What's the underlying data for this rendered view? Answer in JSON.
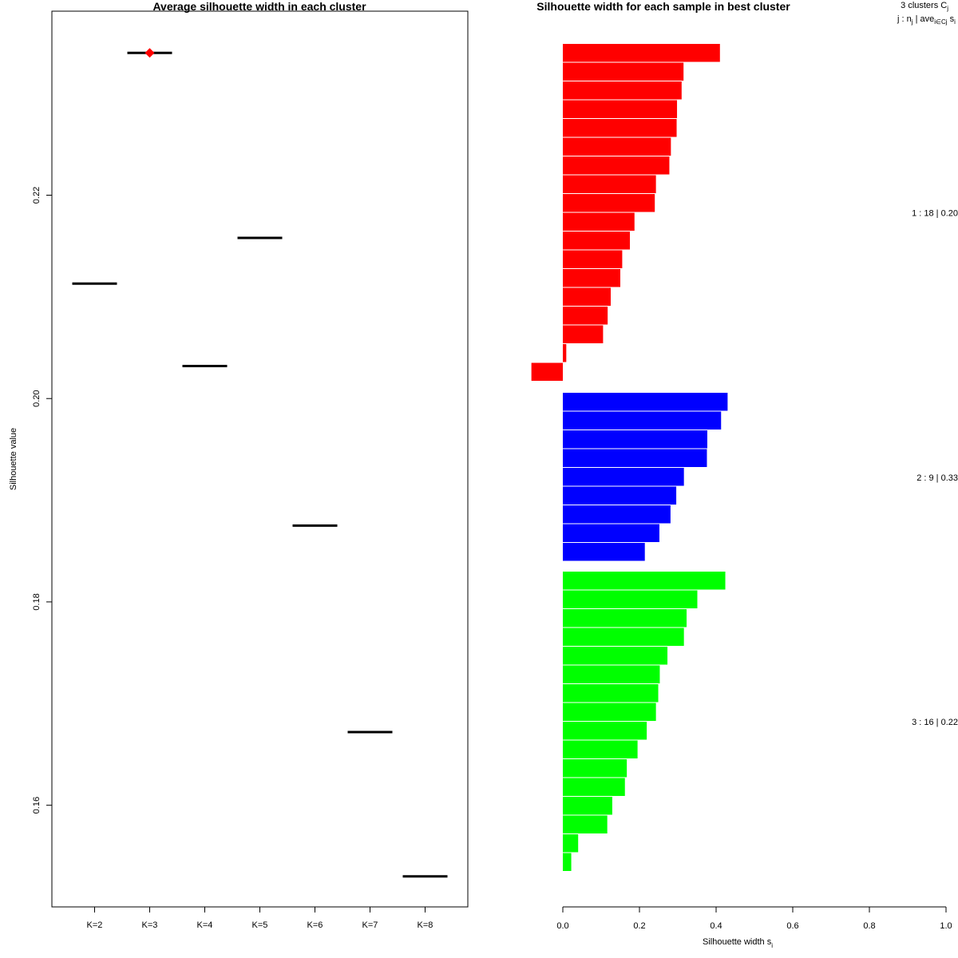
{
  "chart_data": [
    {
      "type": "scatter",
      "title": "Average silhouette width in each cluster",
      "xlabel": "",
      "ylabel": "Silhouette value",
      "categories": [
        "K=2",
        "K=3",
        "K=4",
        "K=5",
        "K=6",
        "K=7",
        "K=8"
      ],
      "values": [
        0.2113,
        0.234,
        0.2032,
        0.2158,
        0.1875,
        0.1672,
        0.153
      ],
      "highlight_index": 1,
      "highlight_color": "#ff0000",
      "yticks": [
        0.16,
        0.18,
        0.2,
        0.22
      ],
      "ytick_labels": [
        "0.16",
        "0.18",
        "0.20",
        "0.22"
      ],
      "ylim": [
        0.15,
        0.2381
      ]
    },
    {
      "type": "bar",
      "orientation": "horizontal",
      "title": "Silhouette width for each sample in best cluster",
      "xlabel": "Silhouette width s",
      "xlabel_sub": "i",
      "xlim": [
        0.0,
        1.0
      ],
      "xticks": [
        0.0,
        0.2,
        0.4,
        0.6,
        0.8,
        1.0
      ],
      "xtick_labels": [
        "0.0",
        "0.2",
        "0.4",
        "0.6",
        "0.8",
        "1.0"
      ],
      "legend_header": {
        "line1": "3  clusters  C",
        "line1_sub": "j",
        "line2": "j :  n",
        "line2_sub": "j",
        "line2_mid": " | ave",
        "line2_sub2": "i∈Cj",
        "line2_end": "  s",
        "line2_sub3": "i"
      },
      "clusters": [
        {
          "name": "1",
          "label": "1 :  18  |  0.20",
          "color": "#ff0000",
          "values": [
            0.41,
            0.315,
            0.31,
            0.298,
            0.297,
            0.282,
            0.278,
            0.243,
            0.24,
            0.187,
            0.175,
            0.155,
            0.15,
            0.125,
            0.117,
            0.105,
            0.009,
            -0.082
          ]
        },
        {
          "name": "2",
          "label": "2 :  9  |  0.33",
          "color": "#0000ff",
          "values": [
            0.43,
            0.413,
            0.377,
            0.376,
            0.316,
            0.296,
            0.281,
            0.252,
            0.214
          ]
        },
        {
          "name": "3",
          "label": "3 :  16  |  0.22",
          "color": "#00ff00",
          "values": [
            0.424,
            0.351,
            0.323,
            0.316,
            0.273,
            0.253,
            0.249,
            0.243,
            0.219,
            0.195,
            0.167,
            0.162,
            0.129,
            0.116,
            0.04,
            0.022
          ]
        }
      ]
    }
  ]
}
